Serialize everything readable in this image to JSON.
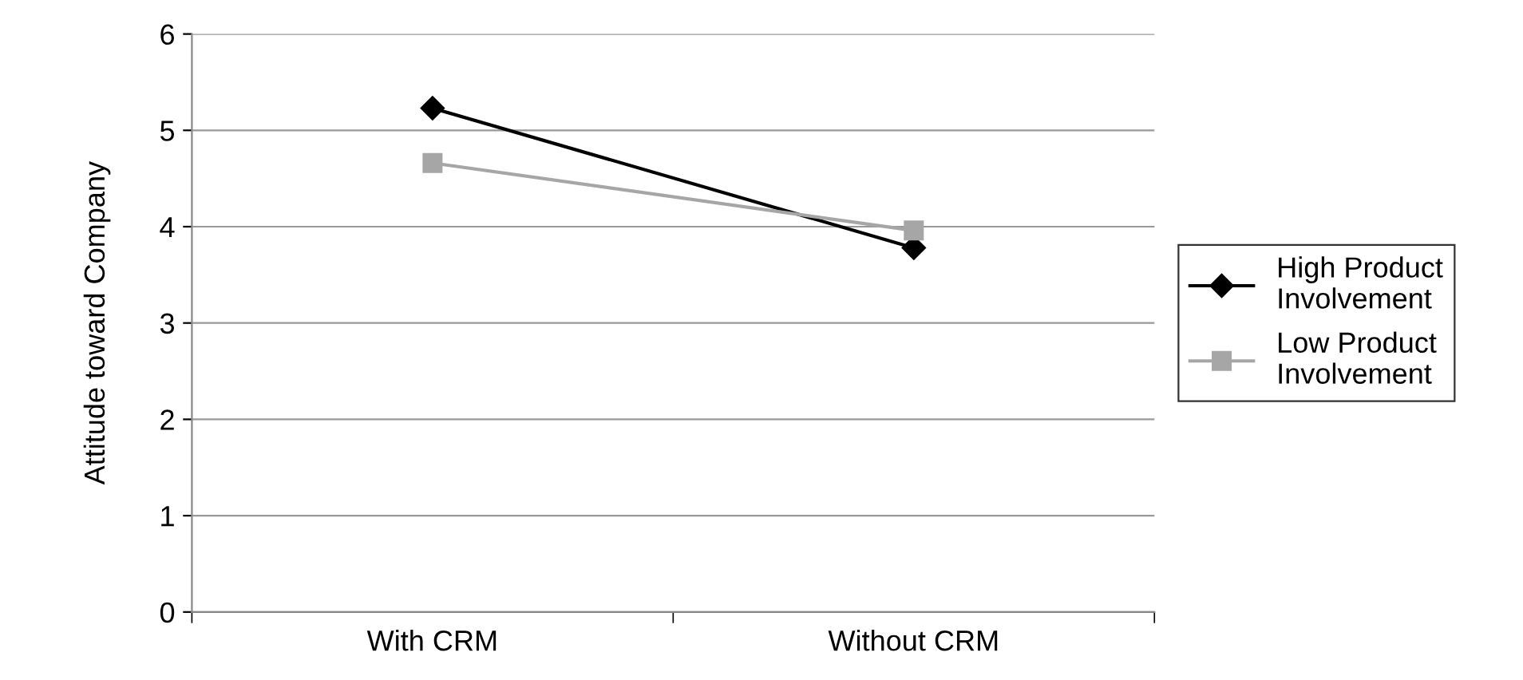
{
  "chart_data": {
    "type": "line",
    "ylabel": "Attitude toward Company",
    "categories": [
      "With CRM",
      "Without CRM"
    ],
    "series": [
      {
        "name": "High Product Involvement",
        "color": "#000000",
        "marker": "diamond",
        "values": [
          5.23,
          3.78
        ]
      },
      {
        "name": "Low Product Involvement",
        "color": "#a6a6a6",
        "marker": "square",
        "values": [
          4.66,
          3.96
        ]
      }
    ],
    "ylim": [
      0,
      6
    ],
    "yticks": [
      0,
      1,
      2,
      3,
      4,
      5,
      6
    ],
    "grid": "y",
    "legend": "right",
    "line_style": "solid"
  }
}
